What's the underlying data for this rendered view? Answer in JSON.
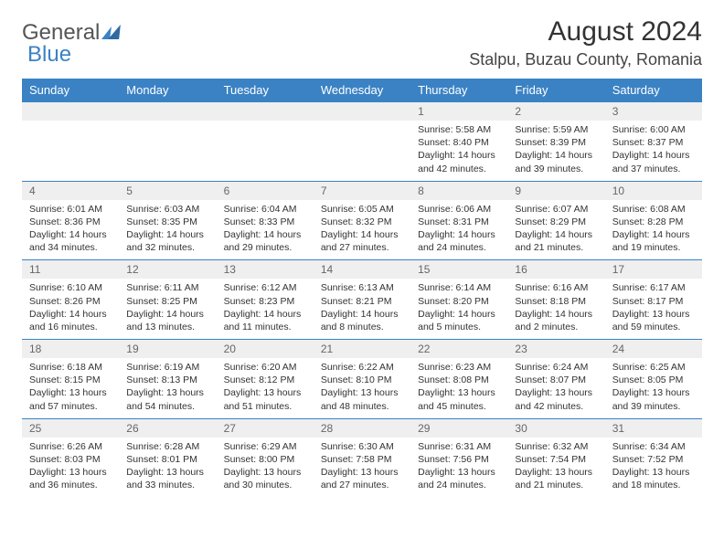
{
  "brand": {
    "part1": "General",
    "part2": "Blue"
  },
  "title": "August 2024",
  "location": "Stalpu, Buzau County, Romania",
  "colors": {
    "header_bg": "#3b82c4",
    "header_text": "#ffffff",
    "daynum_bg": "#efefef",
    "daynum_text": "#666666",
    "cell_text": "#333333",
    "row_border": "#3b82c4",
    "page_bg": "#ffffff"
  },
  "typography": {
    "title_size_pt": 30,
    "location_size_pt": 18,
    "header_size_pt": 13,
    "daynum_size_pt": 12,
    "detail_size_pt": 10.5
  },
  "weekdays": [
    "Sunday",
    "Monday",
    "Tuesday",
    "Wednesday",
    "Thursday",
    "Friday",
    "Saturday"
  ],
  "weeks": [
    [
      null,
      null,
      null,
      null,
      {
        "n": "1",
        "sr": "5:58 AM",
        "ss": "8:40 PM",
        "dl": "14 hours and 42 minutes."
      },
      {
        "n": "2",
        "sr": "5:59 AM",
        "ss": "8:39 PM",
        "dl": "14 hours and 39 minutes."
      },
      {
        "n": "3",
        "sr": "6:00 AM",
        "ss": "8:37 PM",
        "dl": "14 hours and 37 minutes."
      }
    ],
    [
      {
        "n": "4",
        "sr": "6:01 AM",
        "ss": "8:36 PM",
        "dl": "14 hours and 34 minutes."
      },
      {
        "n": "5",
        "sr": "6:03 AM",
        "ss": "8:35 PM",
        "dl": "14 hours and 32 minutes."
      },
      {
        "n": "6",
        "sr": "6:04 AM",
        "ss": "8:33 PM",
        "dl": "14 hours and 29 minutes."
      },
      {
        "n": "7",
        "sr": "6:05 AM",
        "ss": "8:32 PM",
        "dl": "14 hours and 27 minutes."
      },
      {
        "n": "8",
        "sr": "6:06 AM",
        "ss": "8:31 PM",
        "dl": "14 hours and 24 minutes."
      },
      {
        "n": "9",
        "sr": "6:07 AM",
        "ss": "8:29 PM",
        "dl": "14 hours and 21 minutes."
      },
      {
        "n": "10",
        "sr": "6:08 AM",
        "ss": "8:28 PM",
        "dl": "14 hours and 19 minutes."
      }
    ],
    [
      {
        "n": "11",
        "sr": "6:10 AM",
        "ss": "8:26 PM",
        "dl": "14 hours and 16 minutes."
      },
      {
        "n": "12",
        "sr": "6:11 AM",
        "ss": "8:25 PM",
        "dl": "14 hours and 13 minutes."
      },
      {
        "n": "13",
        "sr": "6:12 AM",
        "ss": "8:23 PM",
        "dl": "14 hours and 11 minutes."
      },
      {
        "n": "14",
        "sr": "6:13 AM",
        "ss": "8:21 PM",
        "dl": "14 hours and 8 minutes."
      },
      {
        "n": "15",
        "sr": "6:14 AM",
        "ss": "8:20 PM",
        "dl": "14 hours and 5 minutes."
      },
      {
        "n": "16",
        "sr": "6:16 AM",
        "ss": "8:18 PM",
        "dl": "14 hours and 2 minutes."
      },
      {
        "n": "17",
        "sr": "6:17 AM",
        "ss": "8:17 PM",
        "dl": "13 hours and 59 minutes."
      }
    ],
    [
      {
        "n": "18",
        "sr": "6:18 AM",
        "ss": "8:15 PM",
        "dl": "13 hours and 57 minutes."
      },
      {
        "n": "19",
        "sr": "6:19 AM",
        "ss": "8:13 PM",
        "dl": "13 hours and 54 minutes."
      },
      {
        "n": "20",
        "sr": "6:20 AM",
        "ss": "8:12 PM",
        "dl": "13 hours and 51 minutes."
      },
      {
        "n": "21",
        "sr": "6:22 AM",
        "ss": "8:10 PM",
        "dl": "13 hours and 48 minutes."
      },
      {
        "n": "22",
        "sr": "6:23 AM",
        "ss": "8:08 PM",
        "dl": "13 hours and 45 minutes."
      },
      {
        "n": "23",
        "sr": "6:24 AM",
        "ss": "8:07 PM",
        "dl": "13 hours and 42 minutes."
      },
      {
        "n": "24",
        "sr": "6:25 AM",
        "ss": "8:05 PM",
        "dl": "13 hours and 39 minutes."
      }
    ],
    [
      {
        "n": "25",
        "sr": "6:26 AM",
        "ss": "8:03 PM",
        "dl": "13 hours and 36 minutes."
      },
      {
        "n": "26",
        "sr": "6:28 AM",
        "ss": "8:01 PM",
        "dl": "13 hours and 33 minutes."
      },
      {
        "n": "27",
        "sr": "6:29 AM",
        "ss": "8:00 PM",
        "dl": "13 hours and 30 minutes."
      },
      {
        "n": "28",
        "sr": "6:30 AM",
        "ss": "7:58 PM",
        "dl": "13 hours and 27 minutes."
      },
      {
        "n": "29",
        "sr": "6:31 AM",
        "ss": "7:56 PM",
        "dl": "13 hours and 24 minutes."
      },
      {
        "n": "30",
        "sr": "6:32 AM",
        "ss": "7:54 PM",
        "dl": "13 hours and 21 minutes."
      },
      {
        "n": "31",
        "sr": "6:34 AM",
        "ss": "7:52 PM",
        "dl": "13 hours and 18 minutes."
      }
    ]
  ],
  "labels": {
    "sunrise": "Sunrise:",
    "sunset": "Sunset:",
    "daylight": "Daylight:"
  }
}
